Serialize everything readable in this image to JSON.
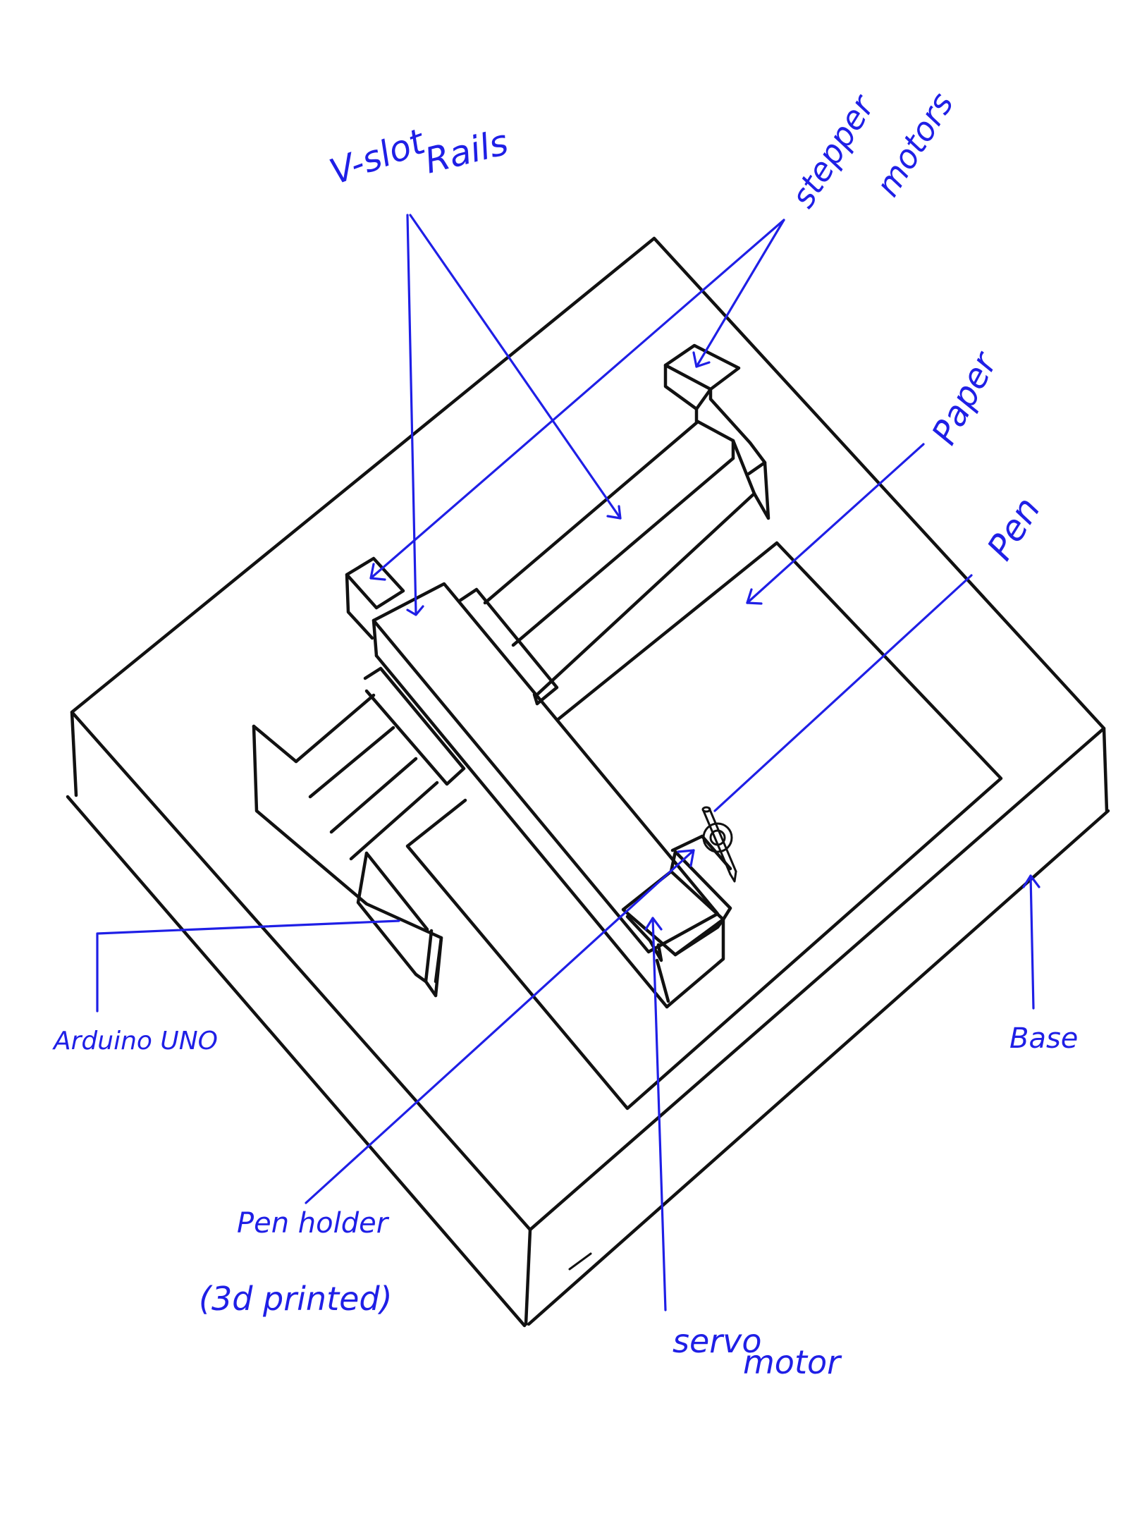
{
  "labels": {
    "v_slot_line1": "V-slot",
    "v_slot_line2": "Rails",
    "stepper_line1": "stepper",
    "stepper_line2": "motors",
    "paper": "Paper",
    "pen": "Pen",
    "arduino": "Arduino UNO",
    "base": "Base",
    "pen_holder_line1": "Pen holder",
    "pen_holder_line2": "(3d printed)",
    "servo_line1": "servo",
    "servo_line2": "motor"
  },
  "colors": {
    "ink": "#111111",
    "annotation": "#1f1fe6",
    "background": "#ffffff"
  }
}
